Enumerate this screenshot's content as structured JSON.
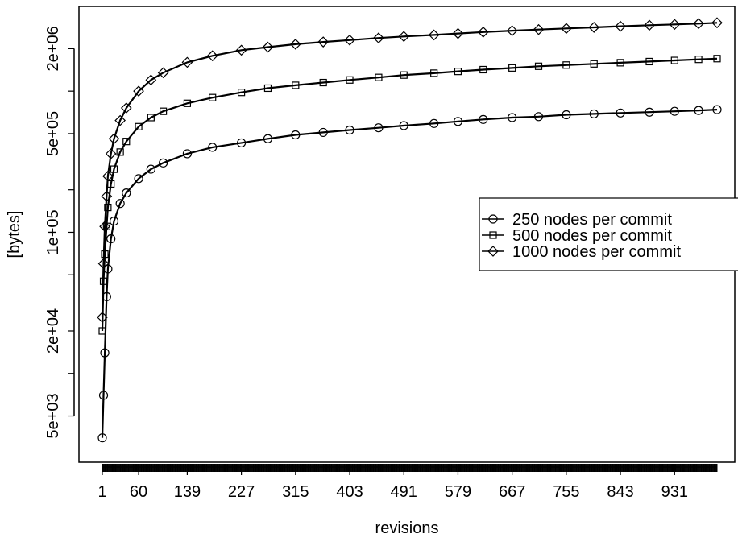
{
  "chart_data": {
    "type": "line",
    "title": "",
    "xlabel": "revisions",
    "ylabel": "[bytes]",
    "y_scale": "log",
    "xlim": [
      1,
      1000
    ],
    "ylim": [
      2900,
      3400000
    ],
    "x_ticks": [
      1,
      60,
      139,
      227,
      315,
      403,
      491,
      579,
      667,
      755,
      843,
      931
    ],
    "x_tick_labels": [
      "1",
      "60",
      "139",
      "227",
      "315",
      "403",
      "491",
      "579",
      "667",
      "755",
      "843",
      "931"
    ],
    "y_ticks": [
      5000,
      20000,
      100000,
      500000,
      2000000
    ],
    "y_tick_labels": [
      "5e+03",
      "2e+04",
      "1e+05",
      "5e+05",
      "2e+06"
    ],
    "grid": false,
    "legend_position": "right",
    "series": [
      {
        "name": "250 nodes per commit",
        "marker": "circle",
        "x": [
          1,
          3,
          5,
          8,
          10,
          15,
          20,
          30,
          40,
          60,
          80,
          100,
          139,
          180,
          227,
          270,
          315,
          360,
          403,
          450,
          491,
          540,
          579,
          620,
          667,
          710,
          755,
          800,
          843,
          890,
          931,
          970,
          1000
        ],
        "values": [
          3500,
          7000,
          14000,
          35000,
          55000,
          90000,
          120000,
          160000,
          190000,
          240000,
          280000,
          310000,
          360000,
          400000,
          430000,
          460000,
          490000,
          510000,
          530000,
          550000,
          570000,
          590000,
          610000,
          630000,
          650000,
          660000,
          680000,
          690000,
          700000,
          710000,
          720000,
          730000,
          740000
        ]
      },
      {
        "name": "500 nodes per commit",
        "marker": "square",
        "x": [
          1,
          3,
          5,
          8,
          10,
          15,
          20,
          30,
          40,
          60,
          80,
          100,
          139,
          180,
          227,
          270,
          315,
          360,
          403,
          450,
          491,
          540,
          579,
          620,
          667,
          710,
          755,
          800,
          843,
          890,
          931,
          970,
          1000
        ],
        "values": [
          20000,
          45000,
          70000,
          110000,
          150000,
          220000,
          280000,
          370000,
          440000,
          560000,
          650000,
          720000,
          820000,
          900000,
          980000,
          1050000,
          1100000,
          1150000,
          1200000,
          1250000,
          1300000,
          1340000,
          1380000,
          1420000,
          1460000,
          1500000,
          1530000,
          1560000,
          1590000,
          1620000,
          1650000,
          1680000,
          1700000
        ]
      },
      {
        "name": "1000 nodes per commit",
        "marker": "diamond",
        "x": [
          1,
          3,
          5,
          8,
          10,
          15,
          20,
          30,
          40,
          60,
          80,
          100,
          139,
          180,
          227,
          270,
          315,
          360,
          403,
          450,
          491,
          540,
          579,
          620,
          667,
          710,
          755,
          800,
          843,
          890,
          931,
          970,
          1000
        ],
        "values": [
          25000,
          60000,
          110000,
          180000,
          250000,
          360000,
          460000,
          620000,
          760000,
          1000000,
          1200000,
          1350000,
          1600000,
          1780000,
          1950000,
          2050000,
          2150000,
          2230000,
          2300000,
          2380000,
          2440000,
          2500000,
          2560000,
          2620000,
          2680000,
          2730000,
          2780000,
          2830000,
          2880000,
          2930000,
          2970000,
          3010000,
          3050000
        ]
      }
    ]
  }
}
